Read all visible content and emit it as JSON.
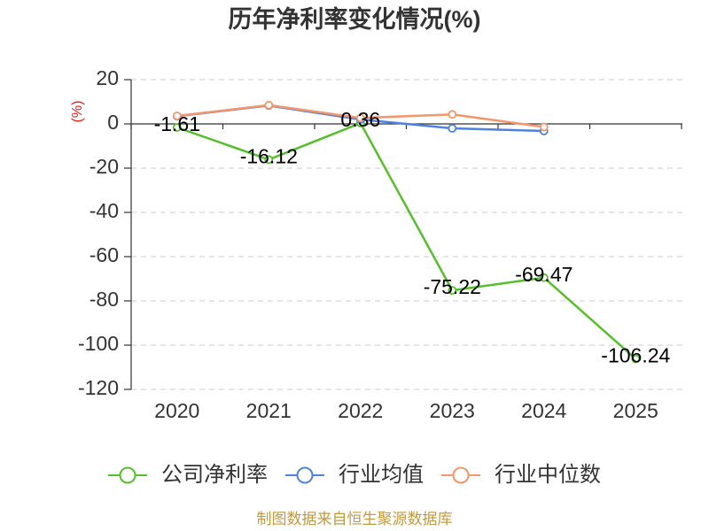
{
  "footer": "制图数据来自恒生聚源数据库",
  "colors": {
    "ylabel": "#e8201a",
    "footer": "#c19a3e"
  },
  "chart_data": {
    "type": "line",
    "title": "历年净利率变化情况(%)",
    "ylabel": "(%)",
    "categories": [
      "2020",
      "2021",
      "2022",
      "2023",
      "2024",
      "2025"
    ],
    "ylim": [
      -120,
      20
    ],
    "yticks": [
      20,
      0,
      -20,
      -40,
      -60,
      -80,
      -100,
      -120
    ],
    "grid": true,
    "legend_position": "bottom",
    "series": [
      {
        "name": "公司净利率",
        "color": "#55c02a",
        "values": [
          -1.61,
          -16.12,
          0.36,
          -75.22,
          -69.47,
          -106.24
        ],
        "show_labels": true
      },
      {
        "name": "行业均值",
        "color": "#4f81e0",
        "values": [
          3.5,
          8.3,
          2.0,
          -2.0,
          -3.2,
          null
        ],
        "show_labels": false
      },
      {
        "name": "行业中位数",
        "color": "#f4956a",
        "values": [
          3.6,
          8.5,
          2.7,
          4.3,
          -1.4,
          null
        ],
        "show_labels": false
      }
    ]
  }
}
